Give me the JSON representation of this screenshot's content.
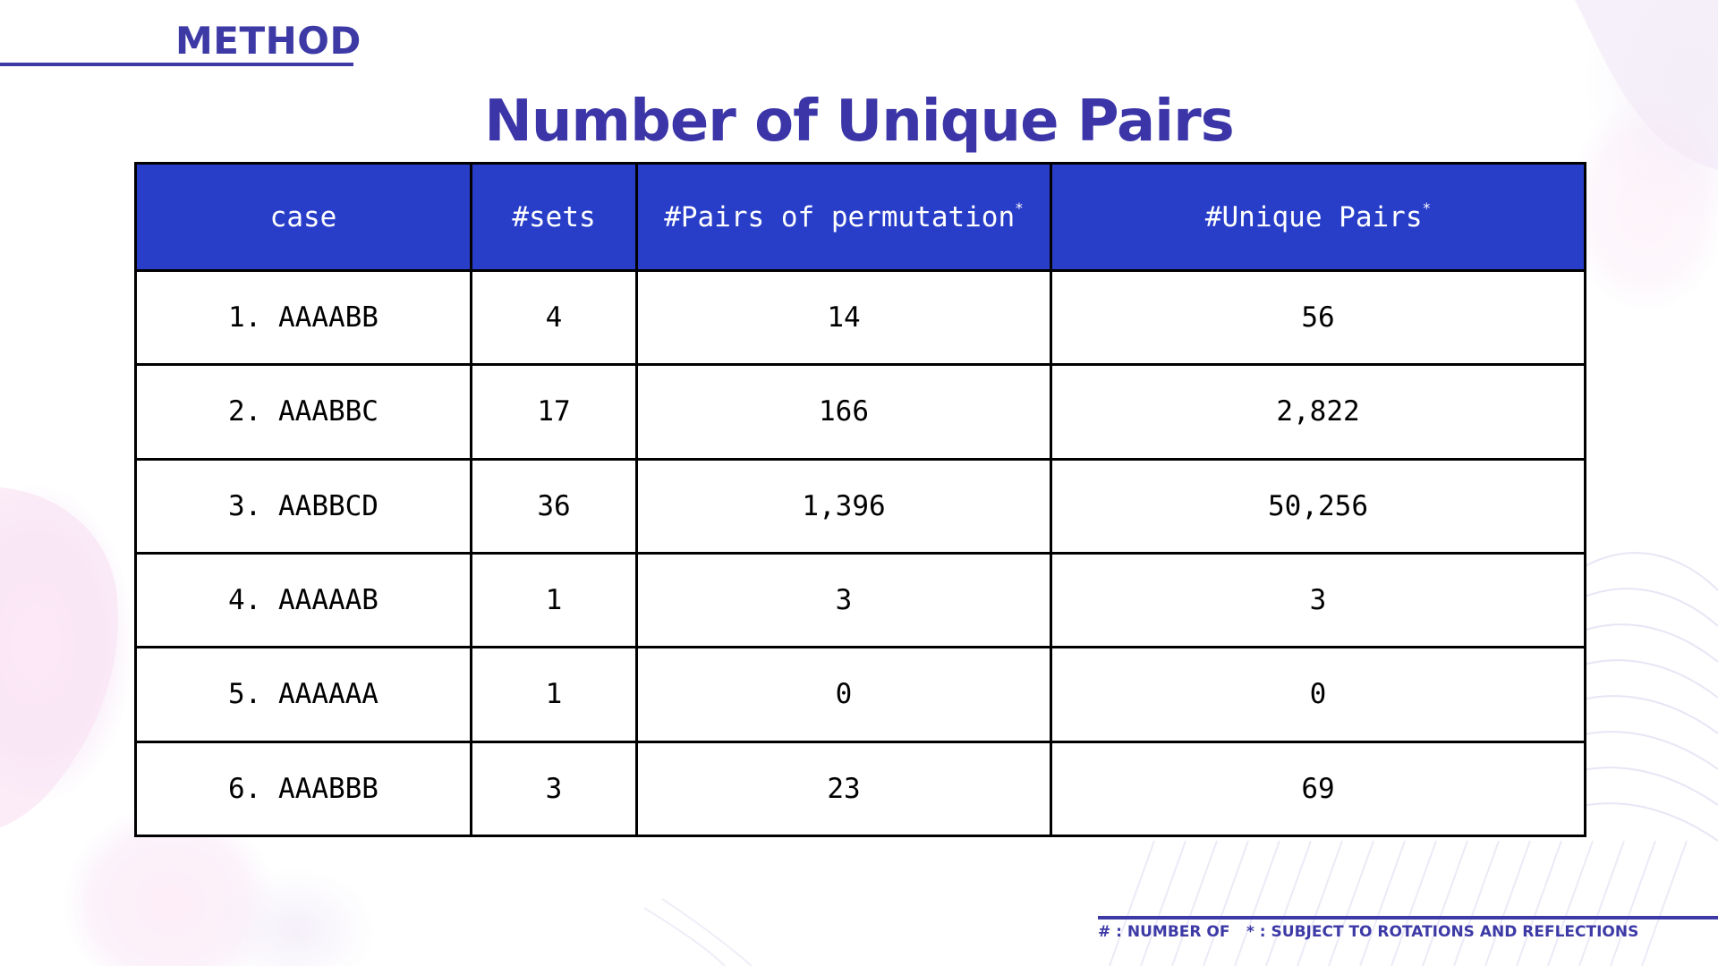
{
  "header": {
    "section_label": "METHOD",
    "title": "Number of Unique Pairs"
  },
  "table": {
    "columns": [
      {
        "label": "case",
        "footnote": ""
      },
      {
        "label": "#sets",
        "footnote": ""
      },
      {
        "label": "#Pairs of permutation",
        "footnote": "*"
      },
      {
        "label": "#Unique Pairs",
        "footnote": "*"
      }
    ],
    "rows": [
      [
        "1. AAAABB",
        "4",
        "14",
        "56"
      ],
      [
        "2. AAABBC",
        "17",
        "166",
        "2,822"
      ],
      [
        "3. AABBCD",
        "36",
        "1,396",
        "50,256"
      ],
      [
        "4. AAAAAB",
        "1",
        "3",
        "3"
      ],
      [
        "5. AAAAAA",
        "1",
        "0",
        "0"
      ],
      [
        "6. AAABBB",
        "3",
        "23",
        "69"
      ]
    ]
  },
  "footer": {
    "note_number_of": "# : NUMBER OF",
    "note_subject_to": "* : SUBJECT TO ROTATIONS AND REFLECTIONS"
  },
  "colors": {
    "accent": "#3d3aa6",
    "header_fill": "#283ec8",
    "border": "#000000"
  }
}
